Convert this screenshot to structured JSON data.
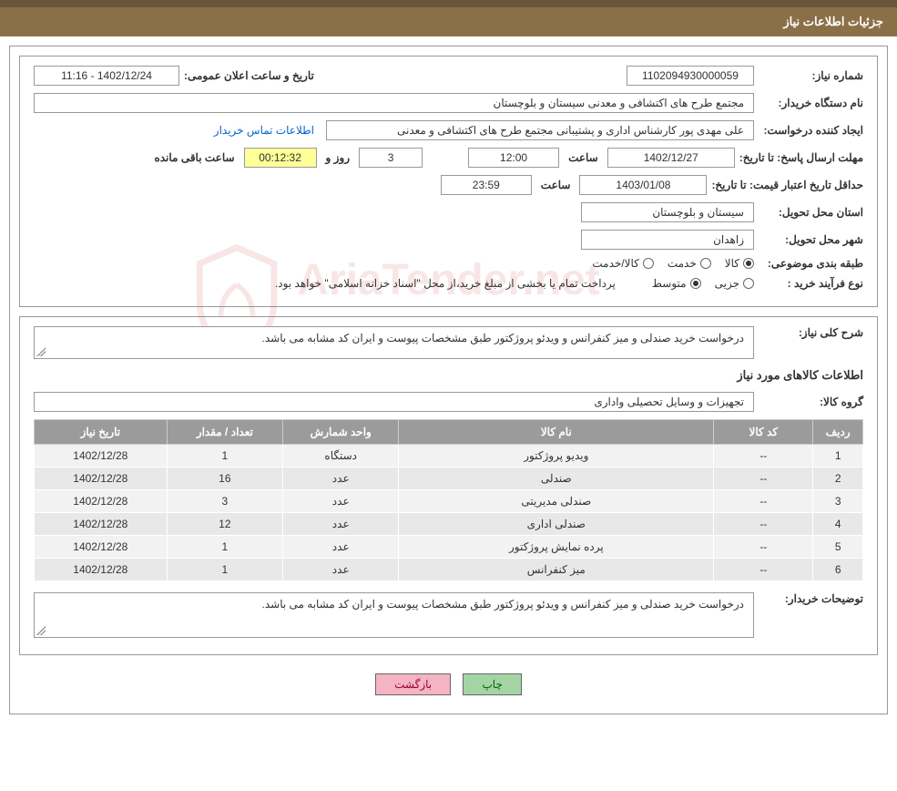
{
  "header": {
    "title": "جزئیات اطلاعات نیاز"
  },
  "info": {
    "need_number_label": "شماره نیاز:",
    "need_number": "1102094930000059",
    "announce_date_label": "تاریخ و ساعت اعلان عمومی:",
    "announce_date": "1402/12/24 - 11:16",
    "buyer_org_label": "نام دستگاه خریدار:",
    "buyer_org": "مجتمع طرح های اکتشافی و معدنی سیستان و بلوچستان",
    "requester_label": "ایجاد کننده درخواست:",
    "requester": "علی مهدی پور کارشناس اداری و پشتیبانی مجتمع طرح های اکتشافی و معدنی",
    "contact_link": "اطلاعات تماس خریدار",
    "response_deadline_label": "مهلت ارسال پاسخ: تا تاریخ:",
    "response_deadline_date": "1402/12/27",
    "time_label": "ساعت",
    "response_deadline_time": "12:00",
    "days_label": "روز و",
    "days_remaining": "3",
    "countdown": "00:12:32",
    "remaining_label": "ساعت باقی مانده",
    "validity_label": "حداقل تاریخ اعتبار قیمت: تا تاریخ:",
    "validity_date": "1403/01/08",
    "validity_time": "23:59",
    "delivery_province_label": "استان محل تحویل:",
    "delivery_province": "سیستان و بلوچستان",
    "delivery_city_label": "شهر محل تحویل:",
    "delivery_city": "زاهدان",
    "category_label": "طبقه بندی موضوعی:",
    "cat_goods": "کالا",
    "cat_service": "خدمت",
    "cat_goods_service": "کالا/خدمت",
    "purchase_type_label": "نوع فرآیند خرید :",
    "type_minor": "جزیی",
    "type_medium": "متوسط",
    "purchase_note": "پرداخت تمام یا بخشی از مبلغ خرید،از محل \"اسناد خزانه اسلامی\" خواهد بود."
  },
  "desc": {
    "overall_label": "شرح کلی نیاز:",
    "overall_text": "درخواست خرید صندلی و میز کنفرانس و ویدئو پروژکتور طبق مشخصات پیوست و ایران کد مشابه می باشد.",
    "goods_info_title": "اطلاعات کالاهای مورد نیاز",
    "goods_group_label": "گروه کالا:",
    "goods_group": "تجهیزات و وسایل تحصیلی واداری",
    "buyer_notes_label": "توضیحات خریدار:",
    "buyer_notes": "درخواست خرید صندلی و میز کنفرانس و ویدئو پروژکتور طبق مشخصات پیوست و ایران کد مشابه می باشد."
  },
  "table": {
    "columns": [
      "ردیف",
      "کد کالا",
      "نام کالا",
      "واحد شمارش",
      "تعداد / مقدار",
      "تاریخ نیاز"
    ],
    "col_widths": [
      "6%",
      "12%",
      "38%",
      "14%",
      "14%",
      "16%"
    ],
    "header_bg": "#9b9b9b",
    "header_color": "#ffffff",
    "row_bg_odd": "#f2f2f2",
    "row_bg_even": "#e8e8e8",
    "rows": [
      {
        "idx": "1",
        "code": "--",
        "name": "ویدیو پروژکتور",
        "unit": "دستگاه",
        "qty": "1",
        "date": "1402/12/28"
      },
      {
        "idx": "2",
        "code": "--",
        "name": "صندلی",
        "unit": "عدد",
        "qty": "16",
        "date": "1402/12/28"
      },
      {
        "idx": "3",
        "code": "--",
        "name": "صندلی مدیریتی",
        "unit": "عدد",
        "qty": "3",
        "date": "1402/12/28"
      },
      {
        "idx": "4",
        "code": "--",
        "name": "صندلی اداری",
        "unit": "عدد",
        "qty": "12",
        "date": "1402/12/28"
      },
      {
        "idx": "5",
        "code": "--",
        "name": "پرده نمایش پروژکتور",
        "unit": "عدد",
        "qty": "1",
        "date": "1402/12/28"
      },
      {
        "idx": "6",
        "code": "--",
        "name": "میز کنفرانس",
        "unit": "عدد",
        "qty": "1",
        "date": "1402/12/28"
      }
    ]
  },
  "buttons": {
    "print": "چاپ",
    "back": "بازگشت"
  },
  "colors": {
    "header_bg": "#8b6f47",
    "header_border": "#6b5539",
    "border": "#999999",
    "link": "#0066cc",
    "countdown_bg": "#ffff99",
    "btn_green_bg": "#a4d4a4",
    "btn_green_fg": "#006600",
    "btn_pink_bg": "#f4b4c4",
    "btn_pink_fg": "#990033",
    "watermark": "rgba(200,50,50,0.12)"
  }
}
